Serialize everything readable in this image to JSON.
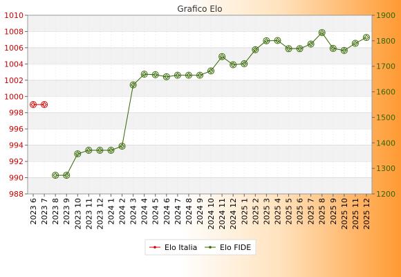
{
  "chart_data": {
    "type": "line",
    "title": "Grafico Elo",
    "categories": [
      "2023 6",
      "2023 7",
      "2023 8",
      "2023 9",
      "2023 10",
      "2023 11",
      "2023 12",
      "2024 1",
      "2024 2",
      "2024 3",
      "2024 4",
      "2024 5",
      "2024 6",
      "2024 7",
      "2024 8",
      "2024 9",
      "2024 10",
      "2024 11",
      "2024 12",
      "2025 1",
      "2025 2",
      "2025 3",
      "2025 4",
      "2025 5",
      "2025 6",
      "2025 7",
      "2025 8",
      "2025 9",
      "2025 10",
      "2025 11",
      "2025 12"
    ],
    "y_left": {
      "min": 988,
      "max": 1010,
      "step": 2,
      "ticks": [
        "988",
        "990",
        "992",
        "994",
        "996",
        "998",
        "1000",
        "1002",
        "1004",
        "1006",
        "1008",
        "1010"
      ]
    },
    "y_right": {
      "min": 1200,
      "max": 1900,
      "step": 100,
      "ticks": [
        "1200",
        "1300",
        "1400",
        "1500",
        "1600",
        "1700",
        "1800",
        "1900"
      ]
    },
    "series": [
      {
        "name": "Elo Italia",
        "axis": "left",
        "color": "#cc0000",
        "values": [
          999,
          999,
          null,
          null,
          null,
          null,
          null,
          null,
          null,
          null,
          null,
          null,
          null,
          null,
          null,
          null,
          null,
          null,
          null,
          null,
          null,
          null,
          null,
          null,
          null,
          null,
          null,
          null,
          null,
          null,
          null
        ]
      },
      {
        "name": "Elo FIDE",
        "axis": "right",
        "color": "#336600",
        "values": [
          null,
          null,
          1273,
          1273,
          1357,
          1371,
          1371,
          1371,
          1387,
          1627,
          1669,
          1667,
          1659,
          1665,
          1665,
          1665,
          1682,
          1738,
          1706,
          1710,
          1765,
          1800,
          1801,
          1769,
          1769,
          1787,
          1832,
          1770,
          1762,
          1790,
          1813
        ]
      }
    ],
    "grid": true,
    "legend": "bottom-center"
  }
}
